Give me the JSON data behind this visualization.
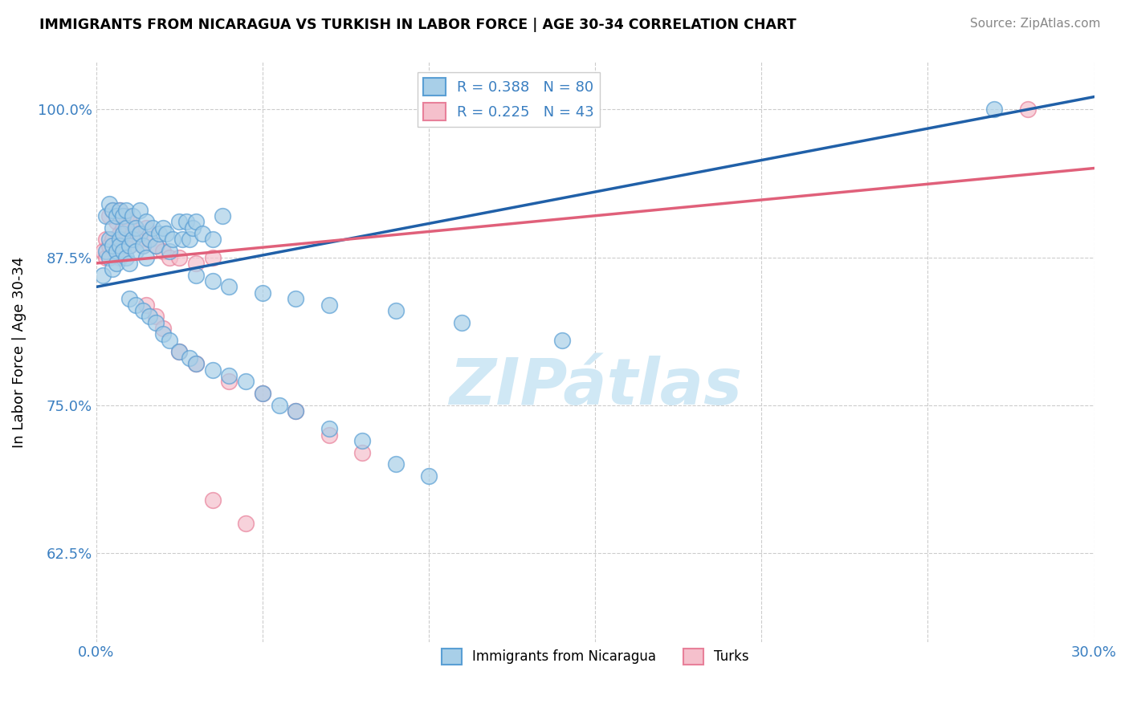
{
  "title": "IMMIGRANTS FROM NICARAGUA VS TURKISH IN LABOR FORCE | AGE 30-34 CORRELATION CHART",
  "source_text": "Source: ZipAtlas.com",
  "ylabel_label": "In Labor Force | Age 30-34",
  "legend_label_blue": "Immigrants from Nicaragua",
  "legend_label_pink": "Turks",
  "xlim": [
    0.0,
    30.0
  ],
  "ylim": [
    55.0,
    104.0
  ],
  "R_blue": 0.388,
  "N_blue": 80,
  "R_pink": 0.225,
  "N_pink": 43,
  "color_blue": "#a8cfe8",
  "color_blue_edge": "#5a9fd4",
  "color_blue_line": "#2060a8",
  "color_pink": "#f5c0cc",
  "color_pink_edge": "#e8809a",
  "color_pink_line": "#e0607a",
  "watermark_color": "#d0e8f5",
  "blue_scatter_x": [
    0.2,
    0.3,
    0.3,
    0.4,
    0.4,
    0.4,
    0.5,
    0.5,
    0.5,
    0.5,
    0.6,
    0.6,
    0.6,
    0.7,
    0.7,
    0.7,
    0.8,
    0.8,
    0.8,
    0.9,
    0.9,
    0.9,
    1.0,
    1.0,
    1.1,
    1.1,
    1.2,
    1.2,
    1.3,
    1.3,
    1.4,
    1.5,
    1.5,
    1.6,
    1.7,
    1.8,
    1.9,
    2.0,
    2.1,
    2.2,
    2.3,
    2.5,
    2.6,
    2.7,
    2.8,
    2.9,
    3.0,
    3.2,
    3.5,
    3.8,
    1.0,
    1.2,
    1.4,
    1.6,
    1.8,
    2.0,
    2.2,
    2.5,
    2.8,
    3.0,
    3.5,
    4.0,
    4.5,
    5.0,
    5.5,
    6.0,
    7.0,
    8.0,
    9.0,
    10.0,
    3.0,
    3.5,
    4.0,
    5.0,
    6.0,
    7.0,
    9.0,
    11.0,
    14.0,
    27.0
  ],
  "blue_scatter_y": [
    86.0,
    88.0,
    91.0,
    89.0,
    87.5,
    92.0,
    86.5,
    88.5,
    91.5,
    90.0,
    88.0,
    91.0,
    87.0,
    89.0,
    91.5,
    88.5,
    88.0,
    91.0,
    89.5,
    87.5,
    90.0,
    91.5,
    88.5,
    87.0,
    89.0,
    91.0,
    88.0,
    90.0,
    89.5,
    91.5,
    88.5,
    90.5,
    87.5,
    89.0,
    90.0,
    88.5,
    89.5,
    90.0,
    89.5,
    88.0,
    89.0,
    90.5,
    89.0,
    90.5,
    89.0,
    90.0,
    90.5,
    89.5,
    89.0,
    91.0,
    84.0,
    83.5,
    83.0,
    82.5,
    82.0,
    81.0,
    80.5,
    79.5,
    79.0,
    78.5,
    78.0,
    77.5,
    77.0,
    76.0,
    75.0,
    74.5,
    73.0,
    72.0,
    70.0,
    69.0,
    86.0,
    85.5,
    85.0,
    84.5,
    84.0,
    83.5,
    83.0,
    82.0,
    80.5,
    100.0
  ],
  "pink_scatter_x": [
    0.2,
    0.3,
    0.3,
    0.4,
    0.4,
    0.5,
    0.5,
    0.6,
    0.6,
    0.7,
    0.7,
    0.7,
    0.8,
    0.8,
    0.9,
    0.9,
    1.0,
    1.0,
    1.1,
    1.2,
    1.3,
    1.4,
    1.5,
    1.6,
    1.8,
    2.0,
    2.2,
    2.5,
    3.0,
    3.5,
    1.5,
    1.8,
    2.0,
    2.5,
    3.0,
    4.0,
    5.0,
    6.0,
    7.0,
    8.0,
    3.5,
    4.5,
    28.0
  ],
  "pink_scatter_y": [
    88.0,
    89.0,
    87.5,
    88.5,
    91.0,
    89.0,
    91.5,
    88.0,
    90.5,
    87.5,
    89.5,
    91.5,
    90.0,
    88.5,
    89.0,
    91.0,
    88.5,
    90.5,
    89.5,
    90.0,
    89.0,
    88.5,
    90.0,
    89.0,
    88.5,
    88.0,
    87.5,
    87.5,
    87.0,
    87.5,
    83.5,
    82.5,
    81.5,
    79.5,
    78.5,
    77.0,
    76.0,
    74.5,
    72.5,
    71.0,
    67.0,
    65.0,
    100.0
  ]
}
